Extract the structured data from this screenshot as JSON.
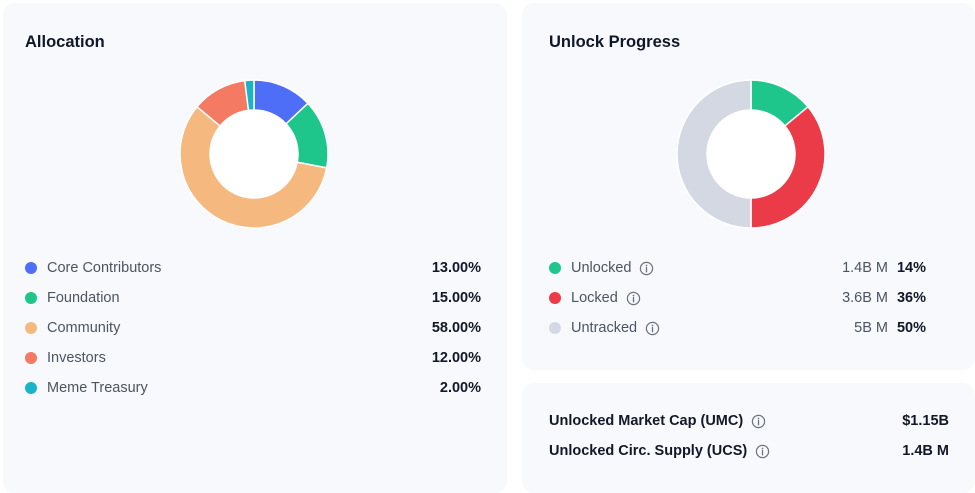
{
  "allocation": {
    "title": "Allocation",
    "items": [
      {
        "label": "Core Contributors",
        "percent": "13.00%",
        "value": 13,
        "color": "#4f6ef7"
      },
      {
        "label": "Foundation",
        "percent": "15.00%",
        "value": 15,
        "color": "#1ec68b"
      },
      {
        "label": "Community",
        "percent": "58.00%",
        "value": 58,
        "color": "#f5b97f"
      },
      {
        "label": "Investors",
        "percent": "12.00%",
        "value": 12,
        "color": "#f47a64"
      },
      {
        "label": "Meme Treasury",
        "percent": "2.00%",
        "value": 2,
        "color": "#19b4c8"
      }
    ]
  },
  "unlock": {
    "title": "Unlock Progress",
    "items": [
      {
        "label": "Unlocked",
        "amount": "1.4B M",
        "percent": "14%",
        "value": 14,
        "color": "#1ec68b"
      },
      {
        "label": "Locked",
        "amount": "3.6B M",
        "percent": "36%",
        "value": 36,
        "color": "#ec3b48"
      },
      {
        "label": "Untracked",
        "amount": "5B M",
        "percent": "50%",
        "value": 50,
        "color": "#d3d8e2"
      }
    ]
  },
  "market": {
    "umc_label": "Unlocked Market Cap (UMC)",
    "umc_value": "$1.15B",
    "ucs_label": "Unlocked Circ. Supply (UCS)",
    "ucs_value": "1.4B M"
  }
}
